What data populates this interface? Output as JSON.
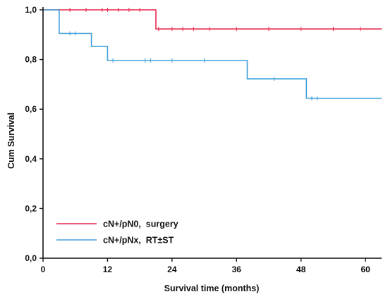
{
  "chart_data": {
    "type": "line",
    "subtype": "kaplan-meier-step",
    "xlabel": "Survival time (months)",
    "ylabel": "Cum Survival",
    "xlim": [
      0,
      63
    ],
    "ylim": [
      0,
      1
    ],
    "x_ticks": [
      0,
      12,
      24,
      36,
      48,
      60
    ],
    "x_tick_labels": [
      "0",
      "12",
      "24",
      "36",
      "48",
      "60"
    ],
    "y_ticks": [
      0,
      0.2,
      0.4,
      0.6,
      0.8,
      1.0
    ],
    "y_tick_labels": [
      "0,0",
      "0,2",
      "0,4",
      "0,6",
      "0,8",
      "1,0"
    ],
    "grid": false,
    "legend_position": "bottom-left",
    "series": [
      {
        "name": "cN+/pN0,  surgery",
        "color": "#e8264e",
        "steps": [
          [
            0,
            1.0
          ],
          [
            21,
            1.0
          ],
          [
            21,
            0.923
          ],
          [
            63,
            0.923
          ]
        ],
        "censor_x": [
          5,
          8,
          11,
          12,
          14,
          16,
          18,
          21.5,
          24,
          26,
          28,
          31,
          36,
          42,
          48,
          54,
          59
        ]
      },
      {
        "name": "cN+/pNx,  RT±ST",
        "color": "#3fa0dc",
        "steps": [
          [
            0,
            1.0
          ],
          [
            3,
            1.0
          ],
          [
            3,
            0.905
          ],
          [
            9,
            0.905
          ],
          [
            9,
            0.853
          ],
          [
            12,
            0.853
          ],
          [
            12,
            0.796
          ],
          [
            38,
            0.796
          ],
          [
            38,
            0.722
          ],
          [
            49,
            0.722
          ],
          [
            49,
            0.644
          ],
          [
            63,
            0.644
          ]
        ],
        "censor_x": [
          5,
          6,
          13,
          19,
          20,
          24,
          30,
          43,
          50,
          51
        ]
      }
    ]
  }
}
